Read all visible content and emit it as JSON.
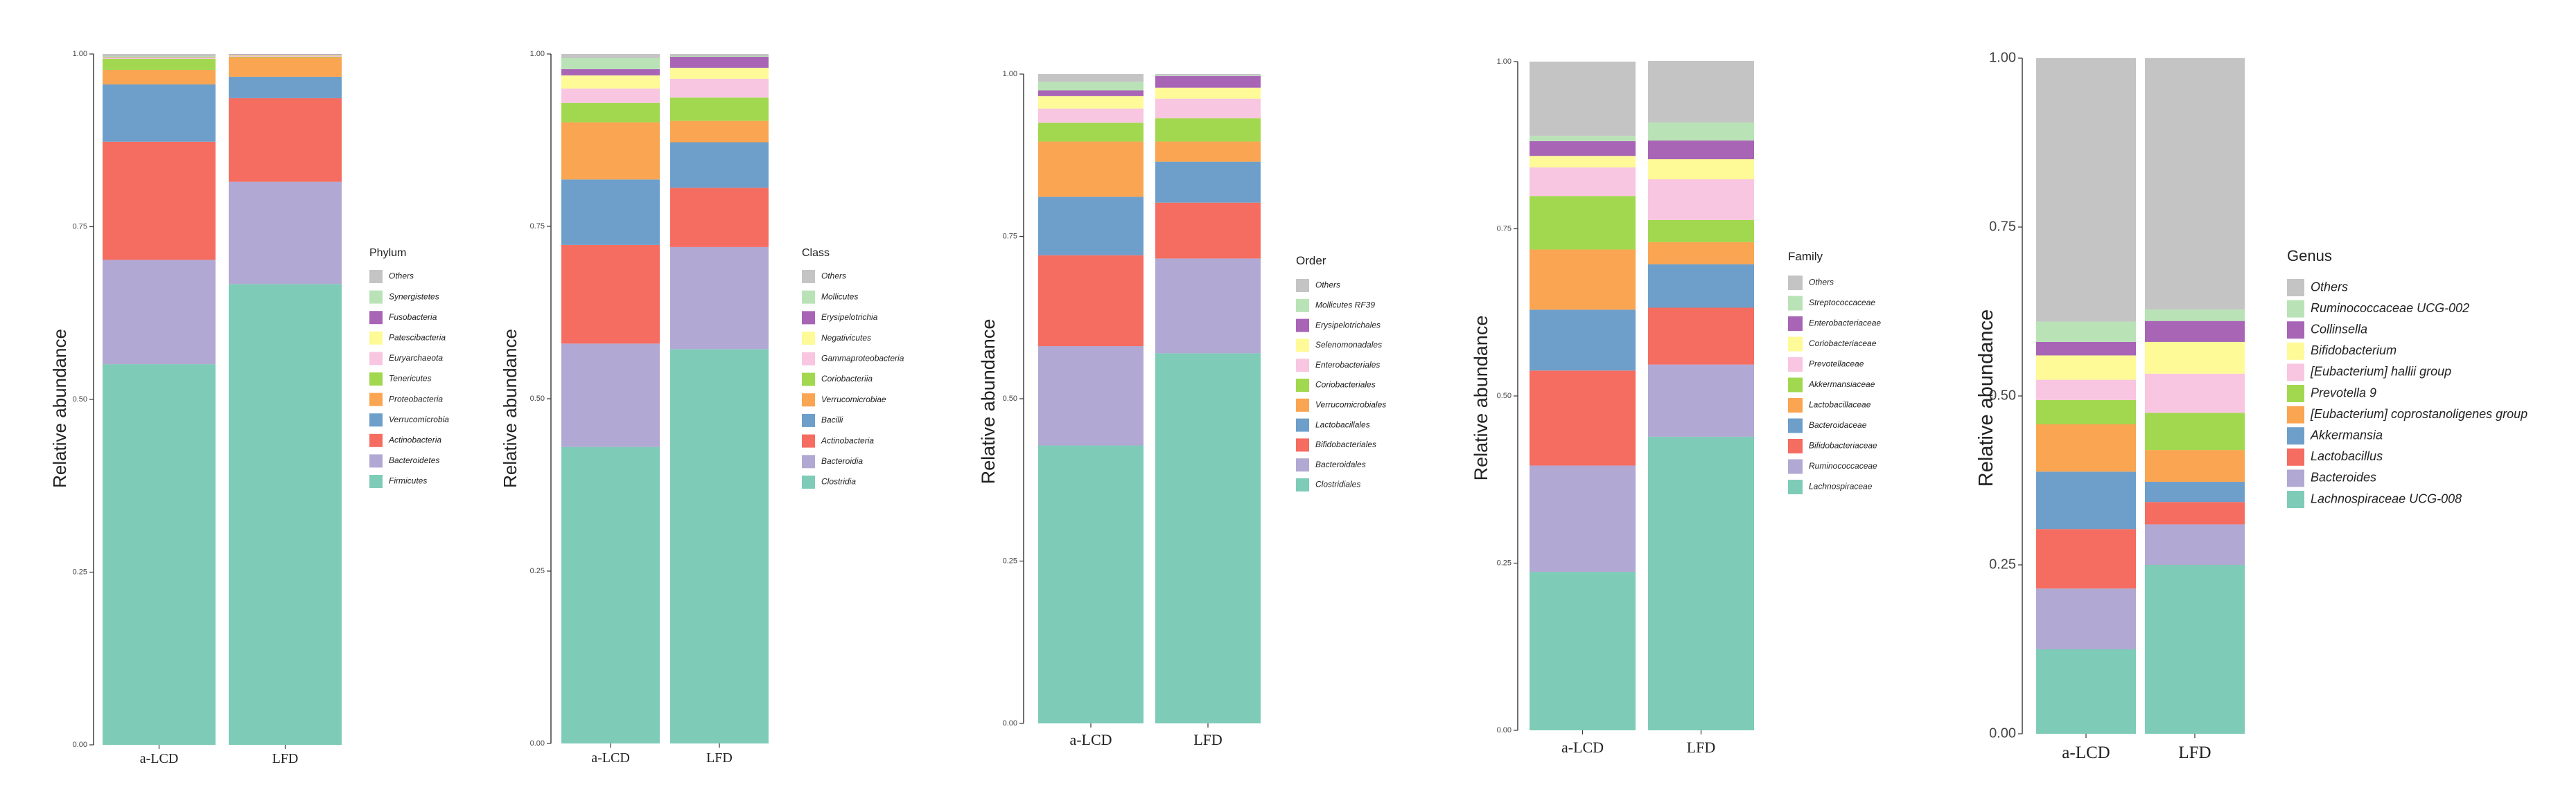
{
  "colors": {
    "others": "#c4c4c4",
    "c10": "#b9e3b7",
    "c9": "#a865b6",
    "c8": "#fdfa97",
    "c7": "#f8c6e0",
    "c6": "#a1d84f",
    "c5": "#f9a552",
    "c4": "#6d9fca",
    "c3": "#f56c60",
    "c2": "#b1a8d3",
    "c1": "#7ecbb8",
    "axis": "#333333"
  },
  "chart_data": [
    {
      "type": "bar",
      "stacked": true,
      "ylabel": "Relative abundance",
      "ylim": [
        0,
        1
      ],
      "yticks": [
        "0.00",
        "0.25",
        "0.50",
        "0.75",
        "1.00"
      ],
      "categories": [
        "a-LCD",
        "LFD"
      ],
      "legend_title": "Phylum",
      "series": [
        {
          "name": "Firmicutes",
          "color": "c1",
          "values": [
            0.551,
            0.667
          ]
        },
        {
          "name": "Bacteroidetes",
          "color": "c2",
          "values": [
            0.151,
            0.148
          ]
        },
        {
          "name": "Actinobacteria",
          "color": "c3",
          "values": [
            0.171,
            0.121
          ]
        },
        {
          "name": "Verrucomicrobia",
          "color": "c4",
          "values": [
            0.083,
            0.031
          ]
        },
        {
          "name": "Proteobacteria",
          "color": "c5",
          "values": [
            0.021,
            0.028
          ]
        },
        {
          "name": "Tenericutes",
          "color": "c6",
          "values": [
            0.016,
            0.001
          ]
        },
        {
          "name": "Euryarchaeota",
          "color": "c7",
          "values": [
            0.001,
            0.001
          ]
        },
        {
          "name": "Patescibacteria",
          "color": "c8",
          "values": [
            0.001,
            0.001
          ]
        },
        {
          "name": "Fusobacteria",
          "color": "c9",
          "values": [
            0.001,
            0.001
          ]
        },
        {
          "name": "Synergistetes",
          "color": "c10",
          "values": [
            0.001,
            0.0
          ]
        },
        {
          "name": "Others",
          "color": "others",
          "values": [
            0.003,
            0.001
          ]
        }
      ]
    },
    {
      "type": "bar",
      "stacked": true,
      "ylabel": "Relative abundance",
      "ylim": [
        0,
        1
      ],
      "yticks": [
        "0.00",
        "0.25",
        "0.50",
        "0.75",
        "1.00"
      ],
      "categories": [
        "a-LCD",
        "LFD"
      ],
      "legend_title": "Class",
      "series": [
        {
          "name": "Clostridia",
          "color": "c1",
          "values": [
            0.43,
            0.572
          ]
        },
        {
          "name": "Bacteroidia",
          "color": "c2",
          "values": [
            0.15,
            0.148
          ]
        },
        {
          "name": "Actinobacteria",
          "color": "c3",
          "values": [
            0.143,
            0.086
          ]
        },
        {
          "name": "Bacilli",
          "color": "c4",
          "values": [
            0.095,
            0.066
          ]
        },
        {
          "name": "Verrucomicrobiae",
          "color": "c5",
          "values": [
            0.083,
            0.031
          ]
        },
        {
          "name": "Coriobacteriia",
          "color": "c6",
          "values": [
            0.028,
            0.034
          ]
        },
        {
          "name": "Gammaproteobacteria",
          "color": "c7",
          "values": [
            0.021,
            0.027
          ]
        },
        {
          "name": "Negativicutes",
          "color": "c8",
          "values": [
            0.019,
            0.016
          ]
        },
        {
          "name": "Erysipelotrichia",
          "color": "c9",
          "values": [
            0.009,
            0.016
          ]
        },
        {
          "name": "Mollicutes",
          "color": "c10",
          "values": [
            0.016,
            0.001
          ]
        },
        {
          "name": "Others",
          "color": "others",
          "values": [
            0.006,
            0.003
          ]
        }
      ]
    },
    {
      "type": "bar",
      "stacked": true,
      "ylabel": "Relative abundance",
      "ylim": [
        0,
        1
      ],
      "yticks": [
        "0.00",
        "0.25",
        "0.50",
        "0.75",
        "1.00"
      ],
      "categories": [
        "a-LCD",
        "LFD"
      ],
      "legend_title": "Order",
      "series": [
        {
          "name": "Clostridiales",
          "color": "c1",
          "values": [
            0.428,
            0.57
          ]
        },
        {
          "name": "Bacteroidales",
          "color": "c2",
          "values": [
            0.153,
            0.146
          ]
        },
        {
          "name": "Bifidobacteriales",
          "color": "c3",
          "values": [
            0.14,
            0.086
          ]
        },
        {
          "name": "Lactobacillales",
          "color": "c4",
          "values": [
            0.09,
            0.063
          ]
        },
        {
          "name": "Verrucomicrobiales",
          "color": "c5",
          "values": [
            0.085,
            0.031
          ]
        },
        {
          "name": "Coriobacteriales",
          "color": "c6",
          "values": [
            0.029,
            0.036
          ]
        },
        {
          "name": "Enterobacteriales",
          "color": "c7",
          "values": [
            0.022,
            0.03
          ]
        },
        {
          "name": "Selenomonadales",
          "color": "c8",
          "values": [
            0.019,
            0.017
          ]
        },
        {
          "name": "Erysipelotrichales",
          "color": "c9",
          "values": [
            0.009,
            0.018
          ]
        },
        {
          "name": "Mollicutes RF39",
          "color": "c10",
          "values": [
            0.013,
            0.001
          ]
        },
        {
          "name": "Others",
          "color": "others",
          "values": [
            0.012,
            0.002
          ]
        }
      ]
    },
    {
      "type": "bar",
      "stacked": true,
      "ylabel": "Relative abundance",
      "ylim": [
        0,
        1
      ],
      "yticks": [
        "0.00",
        "0.25",
        "0.50",
        "0.75",
        "1.00"
      ],
      "categories": [
        "a-LCD",
        "LFD"
      ],
      "legend_title": "Family",
      "series": [
        {
          "name": "Lachnospiraceae",
          "color": "c1",
          "values": [
            0.237,
            0.439
          ]
        },
        {
          "name": "Ruminococcaceae",
          "color": "c2",
          "values": [
            0.159,
            0.108
          ]
        },
        {
          "name": "Bifidobacteriaceae",
          "color": "c3",
          "values": [
            0.142,
            0.085
          ]
        },
        {
          "name": "Bacteroidaceae",
          "color": "c4",
          "values": [
            0.091,
            0.065
          ]
        },
        {
          "name": "Lactobacillaceae",
          "color": "c5",
          "values": [
            0.09,
            0.033
          ]
        },
        {
          "name": "Akkermansiaceae",
          "color": "c6",
          "values": [
            0.08,
            0.033
          ]
        },
        {
          "name": "Prevotellaceae",
          "color": "c7",
          "values": [
            0.043,
            0.061
          ]
        },
        {
          "name": "Coriobacteriaceae",
          "color": "c8",
          "values": [
            0.017,
            0.03
          ]
        },
        {
          "name": "Enterobacteriaceae",
          "color": "c9",
          "values": [
            0.022,
            0.028
          ]
        },
        {
          "name": "Streptococcaceae",
          "color": "c10",
          "values": [
            0.008,
            0.027
          ]
        },
        {
          "name": "Others",
          "color": "others",
          "values": [
            0.111,
            0.092
          ]
        }
      ]
    },
    {
      "type": "bar",
      "stacked": true,
      "ylabel": "Relative abundance",
      "ylim": [
        0,
        1
      ],
      "yticks": [
        "0.00",
        "0.25",
        "0.50",
        "0.75",
        "1.00"
      ],
      "categories": [
        "a-LCD",
        "LFD"
      ],
      "legend_title": "Genus",
      "series": [
        {
          "name": "Lachnospiraceae UCG-008",
          "color": "c1",
          "values": [
            0.125,
            0.25
          ]
        },
        {
          "name": "Bacteroides",
          "color": "c2",
          "values": [
            0.09,
            0.06
          ]
        },
        {
          "name": "Lactobacillus",
          "color": "c3",
          "values": [
            0.088,
            0.033
          ]
        },
        {
          "name": "Akkermansia",
          "color": "c4",
          "values": [
            0.085,
            0.03
          ]
        },
        {
          "name": "[Eubacterium] coprostanoligenes group",
          "color": "c5",
          "values": [
            0.07,
            0.047
          ]
        },
        {
          "name": "Prevotella 9",
          "color": "c6",
          "values": [
            0.036,
            0.055
          ]
        },
        {
          "name": "[Eubacterium] hallii group",
          "color": "c7",
          "values": [
            0.03,
            0.058
          ]
        },
        {
          "name": "Bifidobacterium",
          "color": "c8",
          "values": [
            0.036,
            0.047
          ]
        },
        {
          "name": "Collinsella",
          "color": "c9",
          "values": [
            0.02,
            0.031
          ]
        },
        {
          "name": "Ruminococcaceae UCG-002",
          "color": "c10",
          "values": [
            0.03,
            0.017
          ]
        },
        {
          "name": "Others",
          "color": "others",
          "values": [
            0.39,
            0.372
          ]
        }
      ]
    }
  ]
}
